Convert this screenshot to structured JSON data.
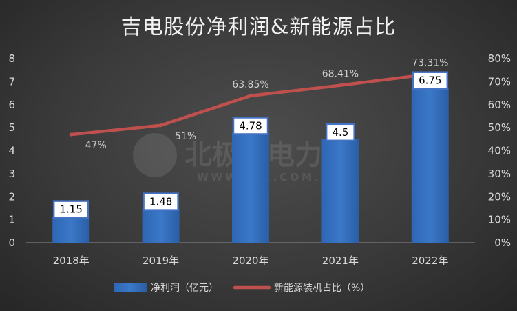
{
  "chart_data": {
    "type": "bar",
    "title": "吉电股份净利润&新能源占比",
    "categories": [
      "2018年",
      "2019年",
      "2020年",
      "2021年",
      "2022年"
    ],
    "series": [
      {
        "name": "净利润（亿元）",
        "type": "bar",
        "axis": "left",
        "color": "#3a78c8",
        "values": [
          1.15,
          1.48,
          4.78,
          4.5,
          6.75
        ],
        "labels": [
          "1.15",
          "1.48",
          "4.78",
          "4.5",
          "6.75"
        ]
      },
      {
        "name": "新能源装机占比（%）",
        "type": "line",
        "axis": "right",
        "color": "#c0504d",
        "values": [
          47,
          51,
          63.85,
          68.41,
          73.31
        ],
        "labels": [
          "47%",
          "51%",
          "63.85%",
          "68.41%",
          "73.31%"
        ]
      }
    ],
    "ylim_left": [
      0,
      8
    ],
    "yticks_left": [
      "0",
      "1",
      "2",
      "3",
      "4",
      "5",
      "6",
      "7",
      "8"
    ],
    "ylim_right": [
      0,
      80
    ],
    "yticks_right": [
      "0%",
      "10%",
      "20%",
      "30%",
      "40%",
      "50%",
      "60%",
      "70%",
      "80%"
    ],
    "grid": false,
    "legend_position": "bottom"
  },
  "watermark": {
    "text": "北极星电力网",
    "url": "WWW.BJX.COM.CN"
  }
}
